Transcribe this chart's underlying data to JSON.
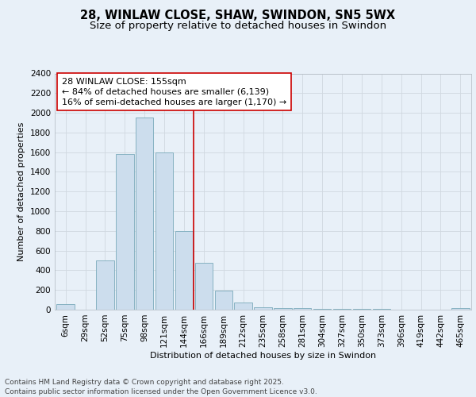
{
  "title": "28, WINLAW CLOSE, SHAW, SWINDON, SN5 5WX",
  "subtitle": "Size of property relative to detached houses in Swindon",
  "xlabel": "Distribution of detached houses by size in Swindon",
  "ylabel": "Number of detached properties",
  "bins": [
    "6sqm",
    "29sqm",
    "52sqm",
    "75sqm",
    "98sqm",
    "121sqm",
    "144sqm",
    "166sqm",
    "189sqm",
    "212sqm",
    "235sqm",
    "258sqm",
    "281sqm",
    "304sqm",
    "327sqm",
    "350sqm",
    "373sqm",
    "396sqm",
    "419sqm",
    "442sqm",
    "465sqm"
  ],
  "values": [
    60,
    0,
    500,
    1580,
    1950,
    1600,
    800,
    480,
    195,
    70,
    25,
    20,
    15,
    5,
    10,
    5,
    5,
    3,
    2,
    2,
    20
  ],
  "bar_color": "#ccdded",
  "bar_edge_color": "#7aaabb",
  "grid_color": "#d0d8e0",
  "bg_color": "#e8f0f8",
  "plot_bg_color": "#e8f0f8",
  "vline_color": "#cc0000",
  "vline_pos": 6.5,
  "annotation_text": "28 WINLAW CLOSE: 155sqm\n← 84% of detached houses are smaller (6,139)\n16% of semi-detached houses are larger (1,170) →",
  "annotation_box_color": "#ffffff",
  "annotation_edge_color": "#cc0000",
  "ylim": [
    0,
    2400
  ],
  "yticks": [
    0,
    200,
    400,
    600,
    800,
    1000,
    1200,
    1400,
    1600,
    1800,
    2000,
    2200,
    2400
  ],
  "footer_text": "Contains HM Land Registry data © Crown copyright and database right 2025.\nContains public sector information licensed under the Open Government Licence v3.0.",
  "title_fontsize": 10.5,
  "subtitle_fontsize": 9.5,
  "axis_label_fontsize": 8,
  "tick_fontsize": 7.5,
  "annotation_fontsize": 8,
  "footer_fontsize": 6.5
}
